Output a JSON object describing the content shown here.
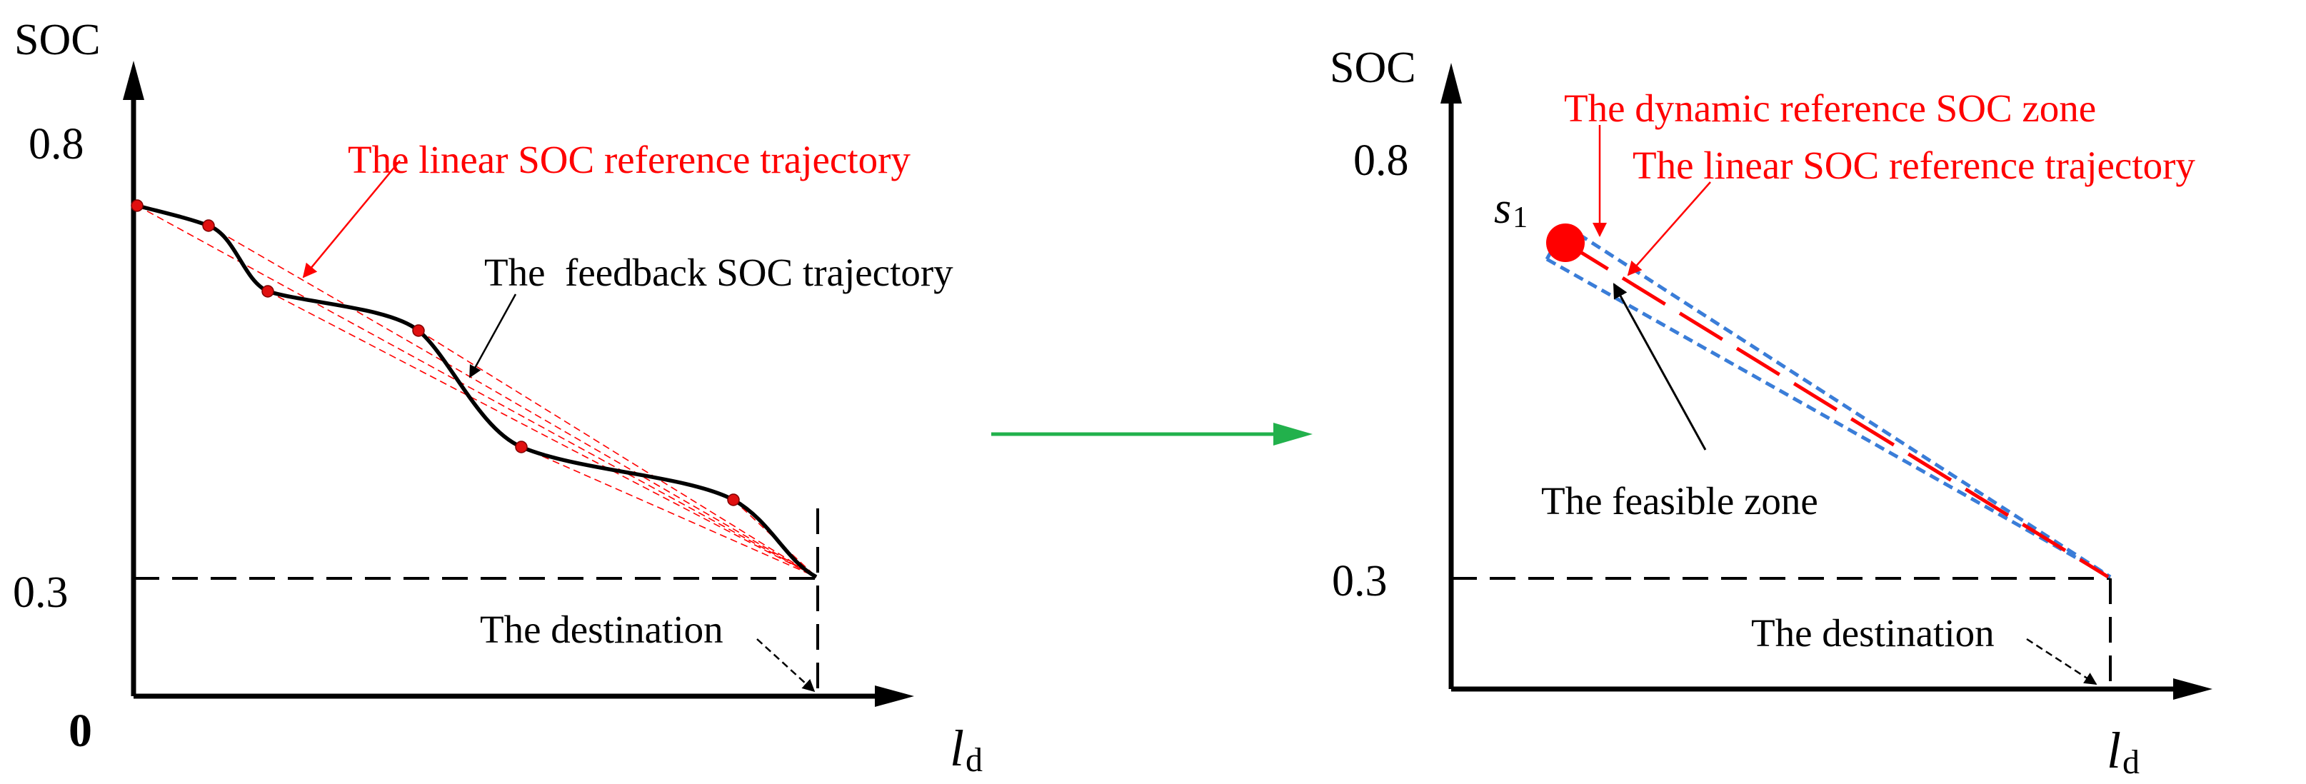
{
  "left_panel": {
    "y_axis_label": "SOC",
    "tick_08": "0.8",
    "tick_03": "0.3",
    "origin_label": "0",
    "x_axis_label_main": "l",
    "x_axis_label_sub": "d",
    "linear_ref_label": "The linear SOC reference trajectory",
    "feedback_label": "The  feedback SOC trajectory",
    "destination_label": "The destination"
  },
  "right_panel": {
    "y_axis_label": "SOC",
    "tick_08": "0.8",
    "tick_03": "0.3",
    "x_axis_label_main": "l",
    "x_axis_label_sub": "d",
    "dynamic_zone_label": "The dynamic reference SOC zone",
    "linear_ref_label": "The linear SOC reference trajectory",
    "feasible_zone_label": "The feasible zone",
    "destination_label": "The destination",
    "point_label_main": "s",
    "point_label_sub": "1"
  },
  "colors": {
    "axis": "#000000",
    "reference": "#ff0000",
    "zone_boundary": "#3a7dd8",
    "transition_arrow": "#22b14c"
  }
}
